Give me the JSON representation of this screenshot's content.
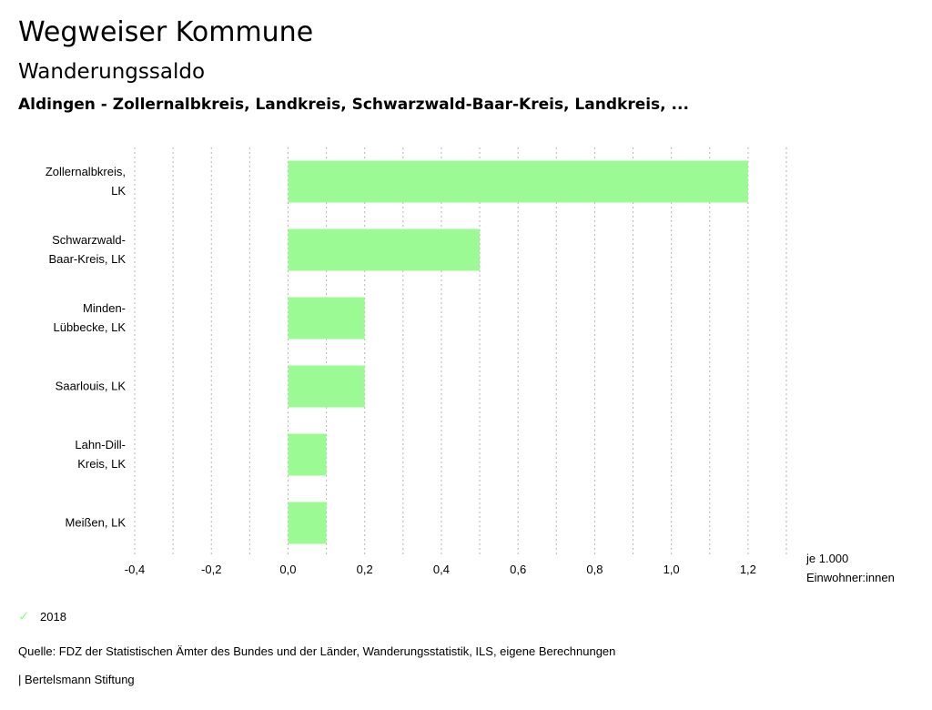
{
  "header": {
    "title": "Wegweiser Kommune",
    "subtitle": "Wanderungssaldo",
    "region": "Aldingen - Zollernalbkreis, Landkreis, Schwarzwald-Baar-Kreis, Landkreis, ..."
  },
  "chart_data": {
    "type": "bar",
    "orientation": "horizontal",
    "title": "Wanderungssaldo",
    "categories": [
      [
        "Zollernalbkreis,",
        "LK"
      ],
      [
        "Schwarzwald-",
        "Baar-Kreis, LK"
      ],
      [
        "Minden-",
        "Lübbecke, LK"
      ],
      [
        "Saarlouis, LK"
      ],
      [
        "Lahn-Dill-",
        "Kreis, LK"
      ],
      [
        "Meißen, LK"
      ]
    ],
    "series": [
      {
        "name": "2018",
        "color": "#9cfa94",
        "values": [
          1.2,
          0.5,
          0.2,
          0.2,
          0.1,
          0.1
        ]
      }
    ],
    "xlim": [
      -0.4,
      1.3
    ],
    "ticks": [
      -0.4,
      -0.2,
      0.0,
      0.2,
      0.4,
      0.6,
      0.8,
      1.0,
      1.2
    ],
    "tick_labels": [
      "-0,4",
      "-0,2",
      "0,0",
      "0,2",
      "0,4",
      "0,6",
      "0,8",
      "1,0",
      "1,2"
    ],
    "xlabel": [
      "je 1.000",
      "Einwohner:innen"
    ],
    "grid": true,
    "legend_position": "bottom-left"
  },
  "legend": {
    "label": "2018",
    "icon": "check-icon"
  },
  "source": "Quelle: FDZ der Statistischen Ämter des Bundes und der Länder, Wanderungsstatistik, ILS, eigene Berechnungen",
  "footer": "| Bertelsmann Stiftung"
}
